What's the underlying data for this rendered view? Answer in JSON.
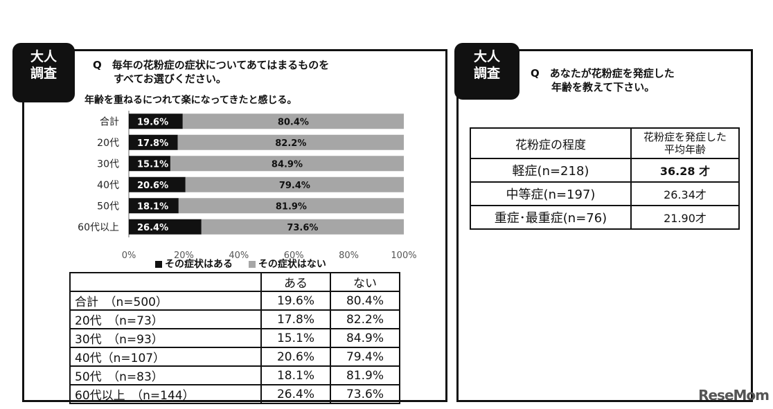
{
  "left_panel": {
    "badge": [
      "大人",
      "調査"
    ],
    "question_lines": [
      "Q　毎年の花粉症の症状についてあてはまるものを",
      "　　すべてお選びください。"
    ],
    "subtitle": "年齢を重ねるにつれて楽になってきたと感じる。",
    "legend": {
      "yes": "その症状はある",
      "no": "その症状はない"
    },
    "table": {
      "headers": [
        "",
        "ある",
        "ない"
      ],
      "rows": [
        [
          "合計　（n=500）",
          "19.6%",
          "80.4%"
        ],
        [
          "20代　（n=73）",
          "17.8%",
          "82.2%"
        ],
        [
          "30代　（n=93）",
          "15.1%",
          "84.9%"
        ],
        [
          "40代（n=107）",
          "20.6%",
          "79.4%"
        ],
        [
          "50代　（n=83）",
          "18.1%",
          "81.9%"
        ],
        [
          "60代以上　（n=144）",
          "26.4%",
          "73.6%"
        ]
      ]
    }
  },
  "chart_data": {
    "type": "bar",
    "orientation": "horizontal",
    "stacked": true,
    "categories": [
      "合計",
      "20代",
      "30代",
      "40代",
      "50代",
      "60代以上"
    ],
    "series": [
      {
        "name": "その症状はある",
        "values": [
          19.6,
          17.8,
          15.1,
          20.6,
          18.1,
          26.4
        ],
        "color": "#111111"
      },
      {
        "name": "その症状はない",
        "values": [
          80.4,
          82.2,
          84.9,
          79.4,
          81.9,
          73.6
        ],
        "color": "#a6a6a6"
      }
    ],
    "data_labels": [
      [
        "19.6%",
        "17.8%",
        "15.1%",
        "20.6%",
        "18.1%",
        "26.4%"
      ],
      [
        "80.4%",
        "82.2%",
        "84.9%",
        "79.4%",
        "81.9%",
        "73.6%"
      ]
    ],
    "title": "年齢を重ねるにつれて楽になってきたと感じる。",
    "xlim": [
      0,
      100
    ],
    "xticks": [
      "0%",
      "20%",
      "40%",
      "60%",
      "80%",
      "100%"
    ],
    "legend_position": "bottom",
    "grid": false
  },
  "right_panel": {
    "badge": [
      "大人",
      "調査"
    ],
    "question_lines": [
      "Q　あなたが花粉症を発症した",
      "　　年齢を教えて下さい。"
    ],
    "table": {
      "header_col1": "花粉症の程度",
      "header_col2_lines": [
        "花粉症を発症した",
        "平均年齢"
      ],
      "rows": [
        {
          "label": "軽症(n=218)",
          "value": "36.28 才",
          "bold": true
        },
        {
          "label": "中等症(n=197)",
          "value": "26.34才",
          "bold": false
        },
        {
          "label": "重症･最重症(n=76)",
          "value": "21.90才",
          "bold": false
        }
      ]
    }
  },
  "watermark": "ReseMom"
}
